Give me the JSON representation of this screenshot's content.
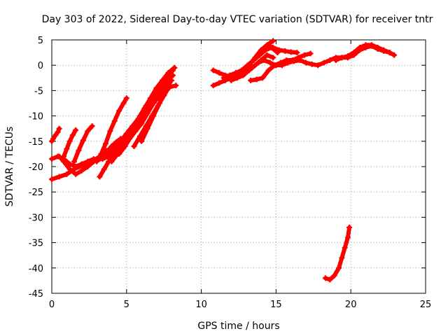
{
  "chart_data": {
    "type": "scatter",
    "title": "Day 303 of 2022, Sidereal Day-to-day VTEC variation (SDTVAR) for receiver tntr",
    "xlabel": "GPS time / hours",
    "ylabel": "SDTVAR / TECUs",
    "xlim": [
      0,
      25
    ],
    "ylim": [
      -45,
      5
    ],
    "xticks": [
      0,
      5,
      10,
      15,
      20,
      25
    ],
    "yticks": [
      5,
      0,
      -5,
      -10,
      -15,
      -20,
      -25,
      -30,
      -35,
      -40,
      -45
    ],
    "xtick_labels": [
      "0",
      "5",
      "10",
      "15",
      "20",
      "25"
    ],
    "ytick_labels": [
      "5",
      "0",
      "-5",
      "-10",
      "-15",
      "-20",
      "-25",
      "-30",
      "-35",
      "-40",
      "-45"
    ],
    "grid": true,
    "color": "#ff0000",
    "series": [
      {
        "x": [
          0.0,
          0.1,
          0.25,
          0.4,
          0.5
        ],
        "y": [
          -15,
          -14.5,
          -13.8,
          -13.2,
          -12.5
        ]
      },
      {
        "x": [
          0.0,
          0.5,
          1.0,
          1.5,
          2.0,
          2.5,
          3.0,
          3.5,
          4.0,
          4.5,
          5.0
        ],
        "y": [
          -22.5,
          -22,
          -21.5,
          -20.5,
          -19.8,
          -19,
          -18.5,
          -18,
          -17,
          -16,
          -14.8
        ]
      },
      {
        "x": [
          0.0,
          0.4,
          0.8,
          1.2,
          1.6,
          2.0,
          2.4,
          2.8,
          3.2,
          3.6,
          4.0,
          4.3,
          4.6
        ],
        "y": [
          -18.5,
          -18,
          -18.5,
          -19.5,
          -20,
          -19.5,
          -19,
          -18.5,
          -18.5,
          -17.5,
          -16,
          -15.2,
          -14.5
        ]
      },
      {
        "x": [
          0.5,
          0.8,
          1.2,
          1.6,
          2.0,
          2.4,
          2.8,
          3.2,
          3.6,
          4.0
        ],
        "y": [
          -18,
          -19,
          -20.5,
          -21.5,
          -20.8,
          -20,
          -19,
          -18,
          -17.5,
          -17
        ]
      },
      {
        "x": [
          0.8,
          1.0,
          1.2,
          1.4,
          1.6
        ],
        "y": [
          -18,
          -16.5,
          -15,
          -13.8,
          -12.8
        ]
      },
      {
        "x": [
          1.5,
          1.8,
          2.1,
          2.4,
          2.7
        ],
        "y": [
          -19,
          -16.8,
          -14.8,
          -13,
          -12
        ]
      },
      {
        "x": [
          1.8,
          2.2,
          2.6,
          3.0,
          3.4,
          3.8,
          4.2,
          4.6,
          5.0
        ],
        "y": [
          -20,
          -19.5,
          -19,
          -18.5,
          -18.5,
          -18,
          -17,
          -16,
          -15
        ]
      },
      {
        "x": [
          3.0,
          3.3,
          3.6,
          3.9,
          4.2,
          4.5,
          4.8,
          5.0
        ],
        "y": [
          -19,
          -17.5,
          -15.5,
          -13,
          -11,
          -9,
          -7.5,
          -6.5
        ]
      },
      {
        "x": [
          3.2,
          3.5,
          3.8,
          4.1,
          4.4,
          4.7,
          5.0
        ],
        "y": [
          -22,
          -20.5,
          -19,
          -17.5,
          -16.5,
          -15.5,
          -14.8
        ]
      },
      {
        "x": [
          3.5,
          3.9,
          4.3,
          4.7,
          5.1,
          5.5,
          5.9,
          6.3,
          6.7,
          7.1,
          7.5,
          7.9,
          8.3
        ],
        "y": [
          -17,
          -16.5,
          -16,
          -15.5,
          -14,
          -12,
          -10,
          -8,
          -6.5,
          -5.5,
          -4.8,
          -4.3,
          -4
        ]
      },
      {
        "x": [
          3.8,
          4.2,
          4.6,
          5.0,
          5.4,
          5.8,
          6.2,
          6.6,
          7.0,
          7.4,
          7.8,
          8.2
        ],
        "y": [
          -18,
          -16.5,
          -15,
          -13.5,
          -12,
          -10.5,
          -8.5,
          -6.5,
          -4.5,
          -3,
          -1.5,
          -0.5
        ]
      },
      {
        "x": [
          4.0,
          4.4,
          4.8,
          5.2,
          5.6,
          6.0,
          6.4,
          6.8,
          7.2,
          7.6,
          8.0
        ],
        "y": [
          -19,
          -17.5,
          -16,
          -14.5,
          -13,
          -11.5,
          -9.5,
          -7.5,
          -6,
          -4.5,
          -3
        ]
      },
      {
        "x": [
          4.5,
          4.9,
          5.3,
          5.7,
          6.1,
          6.5,
          6.9,
          7.3,
          7.7,
          8.1
        ],
        "y": [
          -17.5,
          -16,
          -14,
          -12,
          -10,
          -8,
          -6,
          -4,
          -2.5,
          -1
        ]
      },
      {
        "x": [
          5.0,
          5.4,
          5.8,
          6.2,
          6.6,
          7.0,
          7.4,
          7.8,
          8.2
        ],
        "y": [
          -15,
          -13,
          -11,
          -9,
          -7,
          -5,
          -3,
          -1.5,
          -0.5
        ]
      },
      {
        "x": [
          5.3,
          5.7,
          6.1,
          6.5,
          6.9,
          7.3,
          7.7,
          8.1
        ],
        "y": [
          -14,
          -12.5,
          -10.5,
          -8.5,
          -6.5,
          -4.5,
          -3,
          -2
        ]
      },
      {
        "x": [
          5.5,
          5.9,
          6.3,
          6.7,
          7.1,
          7.5,
          7.9
        ],
        "y": [
          -16,
          -14,
          -12,
          -10,
          -8,
          -6,
          -4
        ]
      },
      {
        "x": [
          6.0,
          6.4,
          6.8,
          7.2,
          7.6,
          8.0
        ],
        "y": [
          -15,
          -12.5,
          -10,
          -7.5,
          -5,
          -3
        ]
      },
      {
        "x": [
          10.8,
          11.2,
          11.6,
          12.0,
          12.4,
          12.8,
          13.2,
          13.6,
          14.0,
          14.4,
          14.8
        ],
        "y": [
          -4,
          -3.5,
          -3,
          -2.5,
          -2,
          -1,
          0,
          1.5,
          3,
          4,
          4.8
        ]
      },
      {
        "x": [
          10.8,
          11.2,
          11.6,
          12.0,
          12.4,
          12.8,
          13.2,
          13.6,
          14.0,
          14.4,
          14.8,
          15.2,
          15.6,
          16.0,
          16.4
        ],
        "y": [
          -1,
          -1.5,
          -2,
          -2.2,
          -1.8,
          -1,
          0,
          1.5,
          3,
          3.8,
          3.5,
          3,
          2.8,
          2.6,
          2.5
        ]
      },
      {
        "x": [
          11.5,
          11.9,
          12.3,
          12.7,
          13.1,
          13.5,
          13.9,
          14.3,
          14.7,
          15.1
        ],
        "y": [
          -2.5,
          -2,
          -1.5,
          -1,
          0,
          1,
          2,
          3,
          3.5,
          2.5
        ]
      },
      {
        "x": [
          12.0,
          12.4,
          12.8,
          13.2,
          13.6,
          14.0,
          14.4,
          14.8
        ],
        "y": [
          -3,
          -2.5,
          -2,
          -1,
          0,
          1,
          2,
          1.5
        ]
      },
      {
        "x": [
          13.0,
          13.4,
          13.8,
          14.2,
          14.6,
          15.0,
          15.4,
          15.8,
          16.2,
          16.6,
          17.0,
          17.4,
          17.8,
          18.2,
          18.6,
          19.0,
          19.4,
          19.8,
          20.2,
          20.6,
          21.0,
          21.4,
          21.8,
          22.2,
          22.6
        ],
        "y": [
          -1,
          -0.5,
          0.5,
          1,
          0.5,
          0,
          0,
          0.5,
          0.8,
          1,
          0.5,
          0.2,
          0,
          0.5,
          1,
          1.5,
          1.5,
          1.5,
          2,
          3,
          3.5,
          3.8,
          3.2,
          2.8,
          2.5
        ]
      },
      {
        "x": [
          13.3,
          13.7,
          14.1,
          14.5,
          14.9,
          15.3,
          15.7,
          16.1,
          16.5,
          16.9,
          17.3
        ],
        "y": [
          -3,
          -2.8,
          -2.5,
          -1,
          0,
          0.5,
          1,
          1,
          1.5,
          2,
          2.3
        ]
      },
      {
        "x": [
          19.0,
          19.4,
          19.8,
          20.2,
          20.6,
          21.0,
          21.4,
          21.8,
          22.2,
          22.6,
          22.9
        ],
        "y": [
          1,
          1.5,
          1.8,
          2.5,
          3.5,
          4,
          4,
          3.5,
          3,
          2.5,
          2
        ]
      },
      {
        "x": [
          18.3,
          18.6,
          18.9,
          19.2,
          19.4,
          19.6,
          19.8,
          19.9
        ],
        "y": [
          -42,
          -42.3,
          -41.5,
          -40,
          -38,
          -36,
          -34,
          -32
        ]
      }
    ]
  }
}
